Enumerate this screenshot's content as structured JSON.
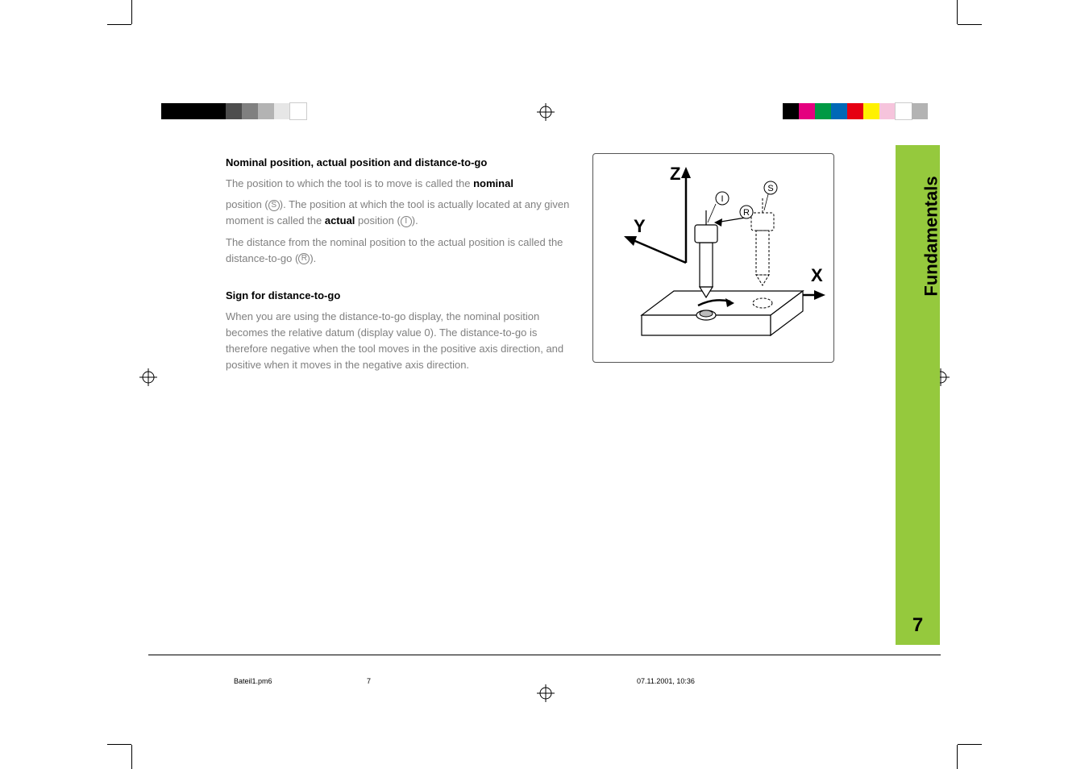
{
  "top_bar_left_colors": [
    "#000000",
    "#000000",
    "#000000",
    "#000000",
    "#4d4d4d",
    "#808080",
    "#b3b3b3",
    "#e6e6e6",
    "#ffffff"
  ],
  "top_bar_right_colors": [
    "#000000",
    "#e4007f",
    "#009944",
    "#0068b7",
    "#e60012",
    "#fff100",
    "#f6c4dc",
    "#ffffff",
    "#b3b3b3"
  ],
  "side_tab": {
    "label": "Fundamentals",
    "page_number": "7",
    "bg_color": "#95c93d"
  },
  "section1": {
    "heading": "Nominal position, actual position and distance-to-go",
    "p1a": "The position to which the tool is to move is called the ",
    "p1b": "nominal",
    "p2a": "position (",
    "p2b": "). The position at which the tool is actually located at any given moment is called the ",
    "p2c": "actual",
    "p2d": " position (",
    "p2e": ").",
    "p3a": "The distance from the nominal position to the actual position is called the distance-to-go (",
    "p3b": ")."
  },
  "symbols": {
    "S": "S",
    "I": "I",
    "R": "R"
  },
  "section2": {
    "heading": "Sign for distance-to-go",
    "p1": "When you are using the distance-to-go display, the nominal position becomes the relative datum (display value 0). The distance-to-go is therefore negative when the tool moves in the positive axis direction, and positive when it moves in the negative axis direction."
  },
  "figure": {
    "Z": "Z",
    "Y": "Y",
    "X": "X",
    "S": "S",
    "I": "I",
    "R": "R"
  },
  "footer": {
    "file": "Bateil1.pm6",
    "page": "7",
    "timestamp": "07.11.2001, 10:36"
  }
}
